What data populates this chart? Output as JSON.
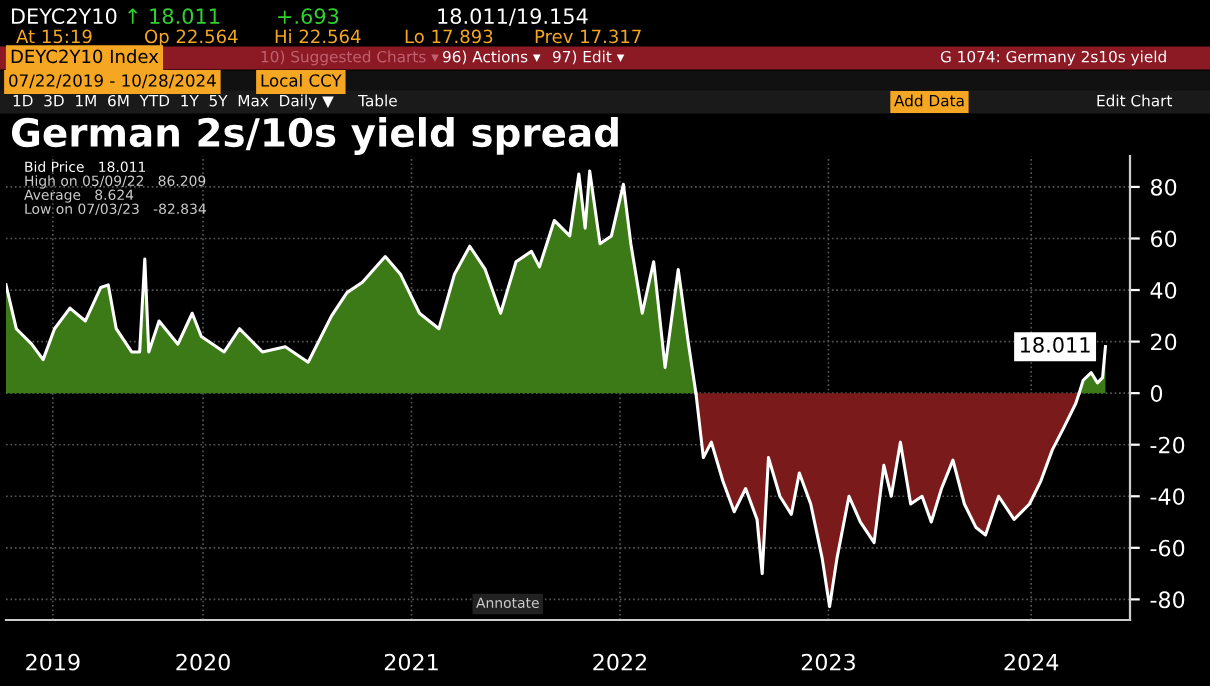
{
  "chart_data": {
    "type": "area",
    "title": "German 2s/10s yield spread",
    "series": [
      {
        "color": "#ffffff",
        "x": [
          "2019-07-22",
          "2019-08-09",
          "2019-09-05",
          "2019-09-25",
          "2019-10-15",
          "2019-11-11",
          "2019-12-08",
          "2020-01-04",
          "2020-01-17",
          "2020-01-31",
          "2020-02-27",
          "2020-03-12",
          "2020-03-21",
          "2020-03-28",
          "2020-04-15",
          "2020-05-18",
          "2020-06-12",
          "2020-06-28",
          "2020-08-07",
          "2020-09-03",
          "2020-10-13",
          "2020-11-22",
          "2021-01-01",
          "2021-02-11",
          "2021-03-10",
          "2021-04-06",
          "2021-05-16",
          "2021-06-12",
          "2021-07-15",
          "2021-08-18",
          "2021-09-14",
          "2021-10-11",
          "2021-11-07",
          "2021-12-04",
          "2021-12-31",
          "2022-01-27",
          "2022-02-10",
          "2022-03-08",
          "2022-04-04",
          "2022-04-20",
          "2022-05-01",
          "2022-05-09",
          "2022-05-27",
          "2022-06-16",
          "2022-07-07",
          "2022-07-20",
          "2022-08-09",
          "2022-08-29",
          "2022-09-18",
          "2022-10-11",
          "2022-10-29",
          "2022-11-11"
        ],
        "values": [
          42,
          25,
          19,
          13,
          25,
          33,
          28,
          41,
          42,
          25,
          16,
          16,
          52,
          16,
          28,
          19,
          31,
          22,
          16,
          25,
          16,
          18,
          12,
          30,
          39,
          43,
          53,
          46,
          31,
          25,
          46,
          57,
          48,
          31,
          51,
          55,
          49,
          67,
          61,
          85,
          64,
          86.2,
          58,
          61,
          81,
          58,
          31,
          51,
          10,
          48,
          19,
          0
        ]
      },
      {
        "color": "#ffffff",
        "x": [
          "2022-11-11",
          "2022-11-24",
          "2022-12-08",
          "2022-12-28",
          "2023-01-17",
          "2023-02-06",
          "2023-02-26",
          "2023-03-07",
          "2023-03-18",
          "2023-04-07",
          "2023-04-27",
          "2023-05-11",
          "2023-05-31",
          "2023-06-20",
          "2023-07-03",
          "2023-07-16",
          "2023-08-06",
          "2023-08-26",
          "2023-09-19",
          "2023-10-06",
          "2023-10-19",
          "2023-11-04",
          "2023-11-22",
          "2023-12-12",
          "2023-12-28",
          "2024-01-15",
          "2024-02-04",
          "2024-02-24",
          "2024-03-15",
          "2024-04-01",
          "2024-04-24",
          "2024-05-21",
          "2024-06-17",
          "2024-07-07",
          "2024-07-27",
          "2024-08-17",
          "2024-09-06",
          "2024-09-12"
        ],
        "values": [
          0,
          -25,
          -19,
          -34,
          -46,
          -37,
          -49,
          -70,
          -25,
          -40,
          -47,
          -31,
          -43,
          -64,
          -82.8,
          -64,
          -40,
          -50,
          -58,
          -28,
          -40,
          -19,
          -43,
          -40,
          -50,
          -37,
          -26,
          -43,
          -52,
          -55,
          -40,
          -49,
          -43,
          -34,
          -22,
          -13,
          -4,
          0
        ]
      },
      {
        "color": "#ffffff",
        "x": [
          "2024-09-12",
          "2024-09-19",
          "2024-10-03",
          "2024-10-14",
          "2024-10-23",
          "2024-10-28"
        ],
        "values": [
          0,
          5,
          8,
          4,
          6,
          18.011
        ]
      }
    ],
    "colors": [
      "#3c7a18",
      "#7a1a1a",
      "#3c7a18"
    ],
    "xlim": [
      "2019-07-22",
      "2024-12-10"
    ],
    "xticks": [
      {
        "value": "2019-10-12",
        "label": "2019"
      },
      {
        "value": "2020-07-01",
        "label": "2020"
      },
      {
        "value": "2021-07-01",
        "label": "2021"
      },
      {
        "value": "2022-07-01",
        "label": "2022"
      },
      {
        "value": "2023-07-01",
        "label": "2023"
      },
      {
        "value": "2024-06-20",
        "label": "2024"
      }
    ],
    "ylim": [
      -88,
      92
    ],
    "yticks": [
      -80,
      -60,
      -40,
      -20,
      0,
      20,
      40,
      60,
      80
    ],
    "grid": true,
    "annotations": [
      "DEYC2Y10",
      "↑ 18.011",
      "+.693",
      "18.011/19.154",
      "At 15:19",
      "Op 22.564",
      "Hi 22.564",
      "Lo 17.893",
      "Prev 17.317",
      "DEYC2Y10 Index",
      "10) Suggested Charts ▾",
      "96) Actions ▾",
      "97) Edit ▾",
      "G 1074: Germany 2s10s yield",
      "07/22/2019 - 10/28/2024",
      "Local CCY",
      "1D  3D  1M  6M  YTD  1Y  5Y  Max  Daily ▼     Table",
      "Add Data",
      "Edit Chart",
      "Bid Price   18.011",
      "High on 05/09/22   86.209",
      "Average   8.624",
      "Low on 07/03/23   -82.834",
      "Annotate",
      {
        "text": "18.011",
        "x": "2024-10-28",
        "y": 18.011
      }
    ]
  }
}
